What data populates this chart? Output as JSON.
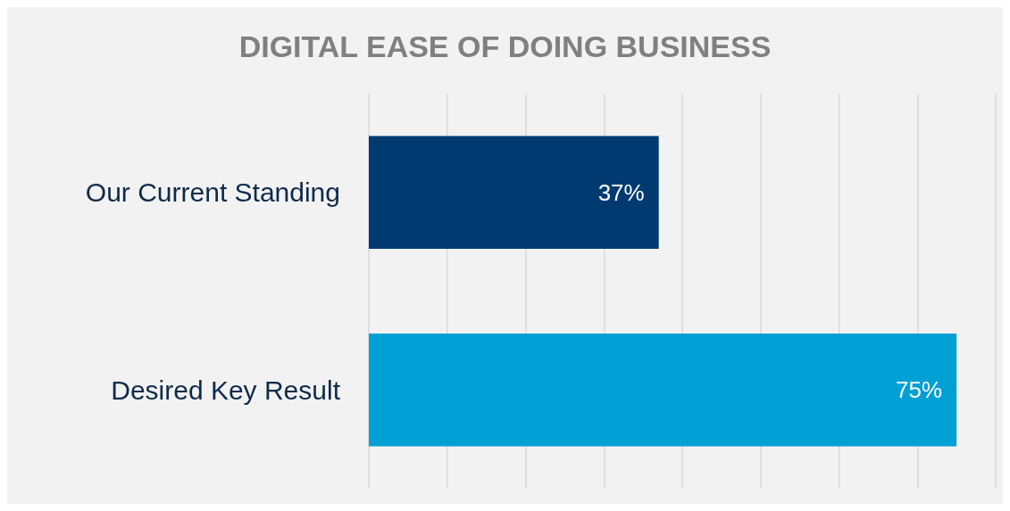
{
  "chart_data": {
    "type": "bar",
    "orientation": "horizontal",
    "title": "DIGITAL EASE OF DOING BUSINESS",
    "categories": [
      "Our Current Standing",
      "Desired Key Result"
    ],
    "values": [
      37,
      75
    ],
    "colors": [
      "#003a70",
      "#009fd4"
    ],
    "value_labels": [
      "37%",
      "75%"
    ],
    "xlim": [
      0,
      80
    ],
    "xticks": [
      {
        "value": 0,
        "label": null
      },
      {
        "value": 10,
        "label": null
      },
      {
        "value": 20,
        "label": null
      },
      {
        "value": 30,
        "label": null
      },
      {
        "value": 40,
        "label": null
      },
      {
        "value": 50,
        "label": null
      },
      {
        "value": 60,
        "label": null
      },
      {
        "value": 70,
        "label": null
      },
      {
        "value": 80,
        "label": null
      }
    ],
    "grid": "x",
    "tick_labels": "y"
  }
}
